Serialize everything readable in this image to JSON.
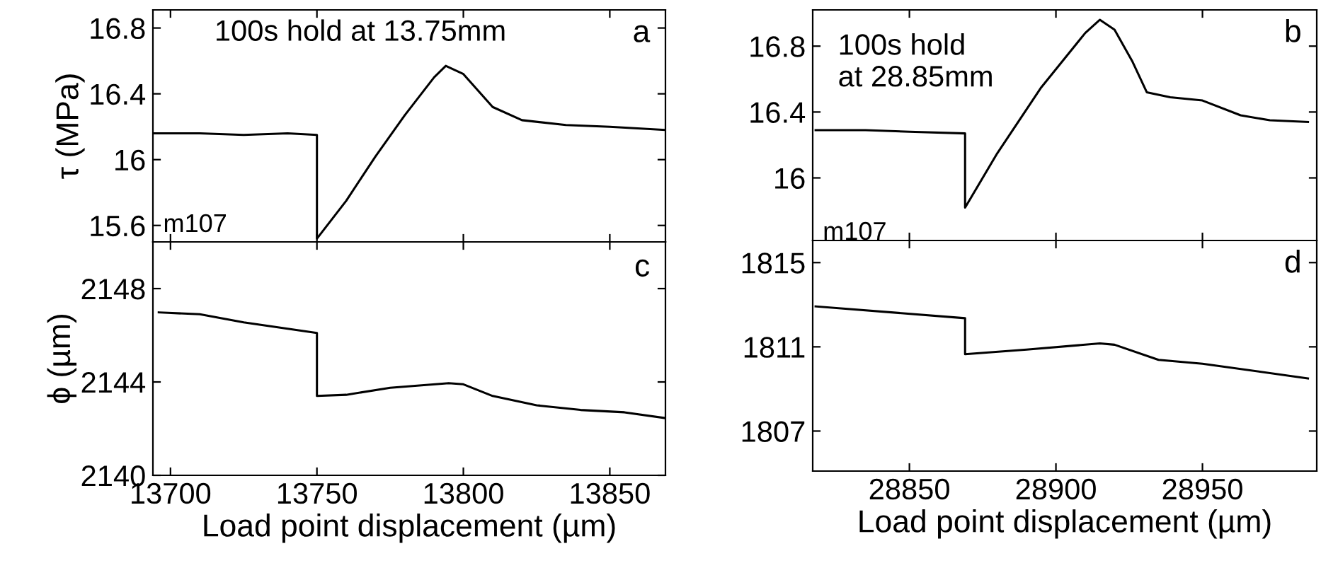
{
  "chart_data": [
    {
      "type": "line",
      "ylabel": "τ (MPa)",
      "annotations": [
        "100s hold at 13.75mm",
        "m107",
        "a"
      ],
      "xlim": [
        13694,
        13869
      ],
      "ylim": [
        15.5,
        16.91
      ],
      "xticks": [
        13700,
        13750,
        13800,
        13850
      ],
      "yticks": [
        15.6,
        16,
        16.4,
        16.8
      ],
      "tick_labels": "y",
      "series": [
        {
          "color": "#000000",
          "x": [
            13694,
            13710,
            13725,
            13740,
            13750,
            13750,
            13760,
            13770,
            13780,
            13790,
            13794,
            13800,
            13810,
            13820,
            13835,
            13850,
            13869
          ],
          "values": [
            16.16,
            16.16,
            16.15,
            16.16,
            16.15,
            15.52,
            15.75,
            16.02,
            16.27,
            16.5,
            16.57,
            16.52,
            16.32,
            16.24,
            16.21,
            16.2,
            16.18
          ]
        }
      ]
    },
    {
      "type": "line",
      "annotations": [
        "100s hold\nat 28.85mm",
        "m107",
        "b"
      ],
      "xlim": [
        28817,
        28989
      ],
      "ylim": [
        15.62,
        17.02
      ],
      "xticks": [
        28850,
        28900,
        28950
      ],
      "yticks": [
        16,
        16.4,
        16.8
      ],
      "tick_labels": "y",
      "series": [
        {
          "color": "#000000",
          "x": [
            28818,
            28835,
            28850,
            28869,
            28869,
            28880,
            28895,
            28910,
            28915,
            28920,
            28926,
            28931,
            28939,
            28950,
            28963,
            28973,
            28986
          ],
          "values": [
            16.29,
            16.29,
            16.28,
            16.27,
            15.82,
            16.15,
            16.55,
            16.88,
            16.96,
            16.9,
            16.71,
            16.52,
            16.49,
            16.47,
            16.38,
            16.35,
            16.34
          ]
        }
      ]
    },
    {
      "type": "line",
      "xlabel": "Load point displacement (µm)",
      "ylabel": "ϕ (µm)",
      "annotations": [
        "c"
      ],
      "xlim": [
        13694,
        13869
      ],
      "ylim": [
        2140,
        2150
      ],
      "xticks": [
        13700,
        13750,
        13800,
        13850
      ],
      "yticks": [
        2140,
        2144,
        2148
      ],
      "series": [
        {
          "color": "#000000",
          "x": [
            13696,
            13710,
            13725,
            13750,
            13750,
            13760,
            13775,
            13795,
            13800,
            13810,
            13825,
            13840,
            13855,
            13869
          ],
          "values": [
            2146.98,
            2146.9,
            2146.55,
            2146.1,
            2143.4,
            2143.45,
            2143.75,
            2143.95,
            2143.9,
            2143.4,
            2143.0,
            2142.8,
            2142.7,
            2142.45
          ]
        }
      ]
    },
    {
      "type": "line",
      "xlabel": "Load point displacement (µm)",
      "annotations": [
        "d"
      ],
      "xlim": [
        28817,
        28989
      ],
      "ylim": [
        1805.1,
        1816.05
      ],
      "xticks": [
        28850,
        28900,
        28950
      ],
      "yticks": [
        1807,
        1811,
        1815
      ],
      "series": [
        {
          "color": "#000000",
          "x": [
            28818,
            28869,
            28869,
            28890,
            28915,
            28920,
            28935,
            28950,
            28986
          ],
          "values": [
            1812.92,
            1812.36,
            1810.65,
            1810.87,
            1811.16,
            1811.1,
            1810.38,
            1810.2,
            1809.5
          ]
        }
      ]
    }
  ]
}
